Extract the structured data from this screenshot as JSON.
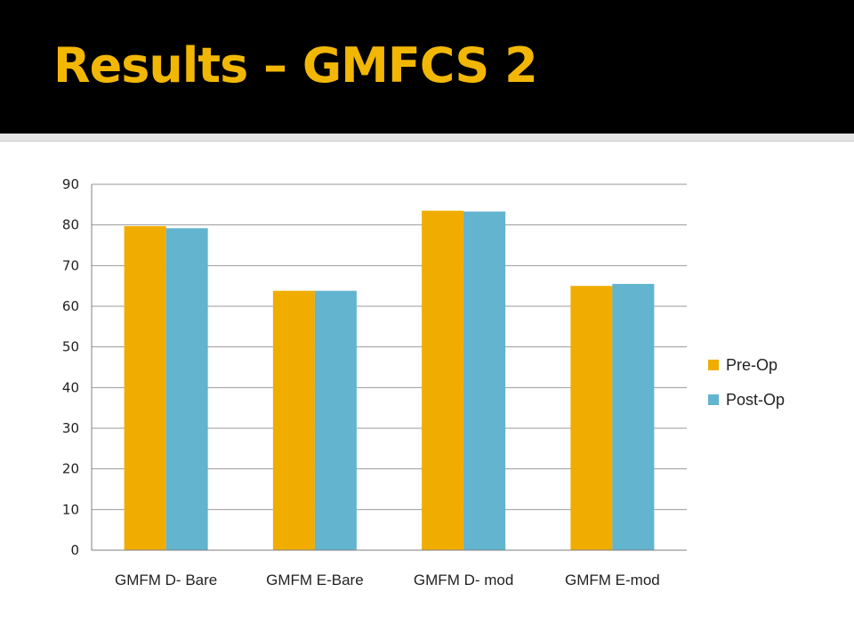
{
  "slide": {
    "title": "Results – GMFCS 2",
    "title_color": "#F2B705",
    "background": "#FFFFFF",
    "header_background": "#000000"
  },
  "chart_data": {
    "type": "bar",
    "categories": [
      "GMFM D- Bare",
      "GMFM E-Bare",
      "GMFM D- mod",
      "GMFM E-mod"
    ],
    "series": [
      {
        "name": "Pre-Op",
        "values": [
          79.7,
          63.8,
          83.5,
          65.0
        ],
        "color": "#F0AD00"
      },
      {
        "name": "Post-Op",
        "values": [
          79.2,
          63.8,
          83.3,
          65.5
        ],
        "color": "#62B4CF"
      }
    ],
    "title": "",
    "xlabel": "",
    "ylabel": "",
    "ylim": [
      0,
      90
    ],
    "yticks": [
      0,
      10,
      20,
      30,
      40,
      50,
      60,
      70,
      80,
      90
    ],
    "grid": true,
    "legend": "right"
  }
}
